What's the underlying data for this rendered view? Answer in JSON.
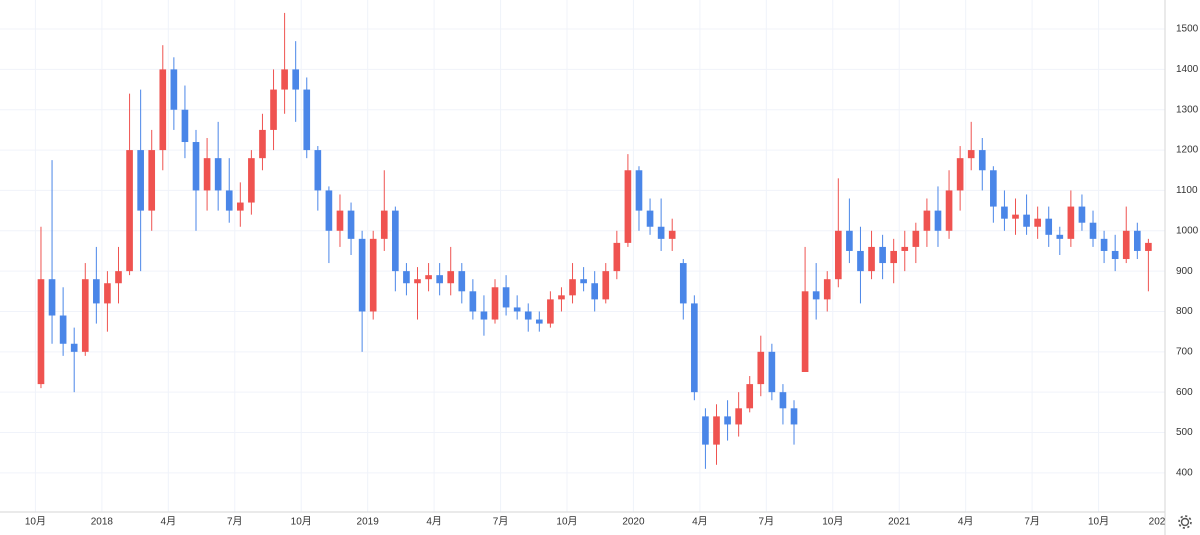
{
  "chart_data": {
    "type": "candlestick",
    "up_color": "#ef5350",
    "down_color": "#4a86e8",
    "grid": true,
    "ylim": [
      303,
      1572
    ],
    "yticks": [
      400,
      500,
      600,
      700,
      800,
      900,
      1000,
      1100,
      1200,
      1300,
      1400,
      1500
    ],
    "xlim": [
      -3.2,
      102
    ],
    "xticks": [
      {
        "value": 0,
        "label": "10月"
      },
      {
        "value": 6,
        "label": "2018"
      },
      {
        "value": 12,
        "label": "4月"
      },
      {
        "value": 18,
        "label": "7月"
      },
      {
        "value": 24,
        "label": "10月"
      },
      {
        "value": 30,
        "label": "2019"
      },
      {
        "value": 36,
        "label": "4月"
      },
      {
        "value": 42,
        "label": "7月"
      },
      {
        "value": 48,
        "label": "10月"
      },
      {
        "value": 54,
        "label": "2020"
      },
      {
        "value": 60,
        "label": "4月"
      },
      {
        "value": 66,
        "label": "7月"
      },
      {
        "value": 72,
        "label": "10月"
      },
      {
        "value": 78,
        "label": "2021"
      },
      {
        "value": 84,
        "label": "4月"
      },
      {
        "value": 90,
        "label": "7月"
      },
      {
        "value": 96,
        "label": "10月"
      },
      {
        "value": 102,
        "label": "202"
      }
    ],
    "open": [
      620,
      880,
      790,
      720,
      700,
      880,
      820,
      870,
      900,
      1200,
      1050,
      1200,
      1400,
      1300,
      1220,
      1100,
      1180,
      1100,
      1050,
      1070,
      1180,
      1250,
      1350,
      1400,
      1350,
      1200,
      1100,
      1000,
      1050,
      980,
      800,
      980,
      1050,
      900,
      870,
      880,
      890,
      870,
      900,
      850,
      800,
      780,
      860,
      810,
      800,
      780,
      770,
      830,
      840,
      880,
      870,
      830,
      900,
      970,
      1150,
      1050,
      1010,
      980,
      920,
      820,
      540,
      470,
      540,
      520,
      560,
      620,
      700,
      600,
      560,
      650,
      850,
      830,
      880,
      1000,
      950,
      900,
      960,
      920,
      950,
      960,
      1000,
      1050,
      1000,
      1100,
      1180,
      1200,
      1150,
      1060,
      1030,
      1040,
      1010,
      1030,
      990,
      980,
      1060,
      1020,
      980,
      950,
      930,
      1000,
      950
    ],
    "high": [
      1010,
      1175,
      860,
      760,
      920,
      960,
      900,
      960,
      1340,
      1350,
      1250,
      1460,
      1430,
      1360,
      1250,
      1230,
      1270,
      1180,
      1120,
      1200,
      1290,
      1400,
      1540,
      1470,
      1380,
      1210,
      1110,
      1090,
      1070,
      1000,
      1000,
      1150,
      1060,
      920,
      910,
      920,
      920,
      960,
      920,
      880,
      840,
      880,
      890,
      840,
      820,
      800,
      850,
      860,
      920,
      910,
      900,
      920,
      1000,
      1190,
      1160,
      1080,
      1080,
      1030,
      930,
      840,
      560,
      570,
      580,
      600,
      640,
      740,
      720,
      620,
      580,
      960,
      920,
      900,
      1130,
      1080,
      1010,
      1000,
      990,
      980,
      1000,
      1020,
      1080,
      1110,
      1150,
      1210,
      1270,
      1230,
      1160,
      1100,
      1080,
      1090,
      1060,
      1060,
      1010,
      1100,
      1090,
      1050,
      1000,
      990,
      1060,
      1020,
      980
    ],
    "low": [
      610,
      720,
      690,
      600,
      690,
      770,
      750,
      820,
      890,
      900,
      1000,
      1150,
      1250,
      1180,
      1000,
      1050,
      1050,
      1020,
      1010,
      1040,
      1150,
      1200,
      1290,
      1270,
      1180,
      1050,
      920,
      960,
      940,
      700,
      780,
      950,
      850,
      840,
      780,
      850,
      840,
      840,
      820,
      780,
      740,
      770,
      790,
      780,
      750,
      750,
      760,
      800,
      820,
      850,
      800,
      820,
      880,
      960,
      1000,
      990,
      950,
      950,
      780,
      580,
      410,
      420,
      480,
      490,
      550,
      590,
      580,
      520,
      470,
      650,
      780,
      800,
      860,
      920,
      820,
      880,
      880,
      870,
      900,
      920,
      960,
      960,
      980,
      1050,
      1150,
      1100,
      1020,
      1000,
      990,
      990,
      980,
      960,
      940,
      960,
      1000,
      960,
      920,
      900,
      920,
      930,
      850
    ],
    "close": [
      880,
      790,
      720,
      700,
      880,
      820,
      870,
      900,
      1200,
      1050,
      1200,
      1400,
      1300,
      1220,
      1100,
      1180,
      1100,
      1050,
      1070,
      1180,
      1250,
      1350,
      1400,
      1350,
      1200,
      1100,
      1000,
      1050,
      980,
      800,
      980,
      1050,
      900,
      870,
      880,
      890,
      870,
      900,
      850,
      800,
      780,
      860,
      810,
      800,
      780,
      770,
      830,
      840,
      880,
      870,
      830,
      900,
      970,
      1150,
      1050,
      1010,
      980,
      1000,
      820,
      600,
      470,
      540,
      520,
      560,
      620,
      700,
      600,
      560,
      520,
      850,
      830,
      880,
      1000,
      950,
      900,
      960,
      920,
      950,
      960,
      1000,
      1050,
      1000,
      1100,
      1180,
      1200,
      1150,
      1060,
      1030,
      1040,
      1010,
      1030,
      990,
      980,
      1060,
      1020,
      980,
      950,
      930,
      1000,
      950,
      970
    ]
  }
}
